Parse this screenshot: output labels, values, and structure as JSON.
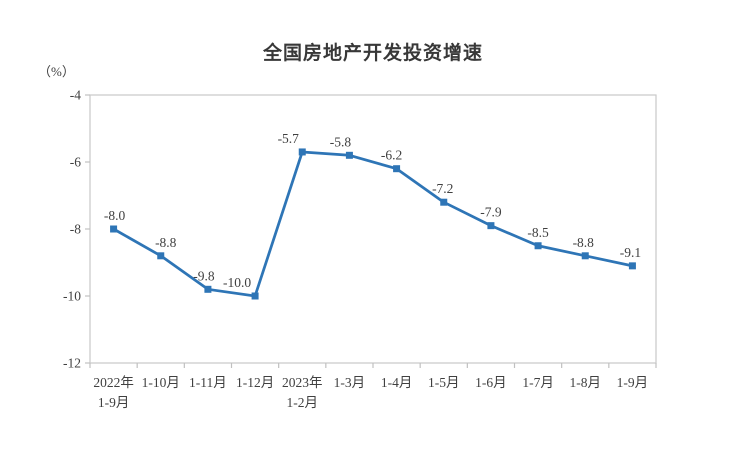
{
  "chart_data": {
    "type": "line",
    "title": "全国房地产开发投资增速",
    "unit": "（%）",
    "xlabel": "",
    "ylabel": "（%）",
    "categories": [
      [
        "2022年",
        "1-9月"
      ],
      [
        "1-10月"
      ],
      [
        "1-11月"
      ],
      [
        "1-12月"
      ],
      [
        "2023年",
        "1-2月"
      ],
      [
        "1-3月"
      ],
      [
        "1-4月"
      ],
      [
        "1-5月"
      ],
      [
        "1-6月"
      ],
      [
        "1-7月"
      ],
      [
        "1-8月"
      ],
      [
        "1-9月"
      ]
    ],
    "values": [
      -8.0,
      -8.8,
      -9.8,
      -10.0,
      -5.7,
      -5.8,
      -6.2,
      -7.2,
      -7.9,
      -8.5,
      -8.8,
      -9.1
    ],
    "point_labels": [
      "-8.0",
      "-8.8",
      "-9.8",
      "-10.0",
      "-5.7",
      "-5.8",
      "-6.2",
      "-7.2",
      "-7.9",
      "-8.5",
      "-8.8",
      "-9.1"
    ],
    "label_dx": [
      1,
      5,
      -4,
      -18,
      -14,
      -9,
      -5,
      -1,
      0,
      0,
      -2,
      -2
    ],
    "yticks": [
      "-4",
      "-6",
      "-8",
      "-10",
      "-12"
    ],
    "ytick_values": [
      -4,
      -6,
      -8,
      -10,
      -12
    ],
    "ylim": [
      -12,
      -4
    ],
    "grid": false,
    "legend": "none",
    "colors": {
      "line": "#2E75B6",
      "marker": "#2E75B6",
      "axis_border": "#C9C9C9",
      "tick": "#C0C0C0",
      "axis_text": "#404040",
      "data_label_text": "#3D3D3D",
      "title_text": "#383838"
    }
  }
}
